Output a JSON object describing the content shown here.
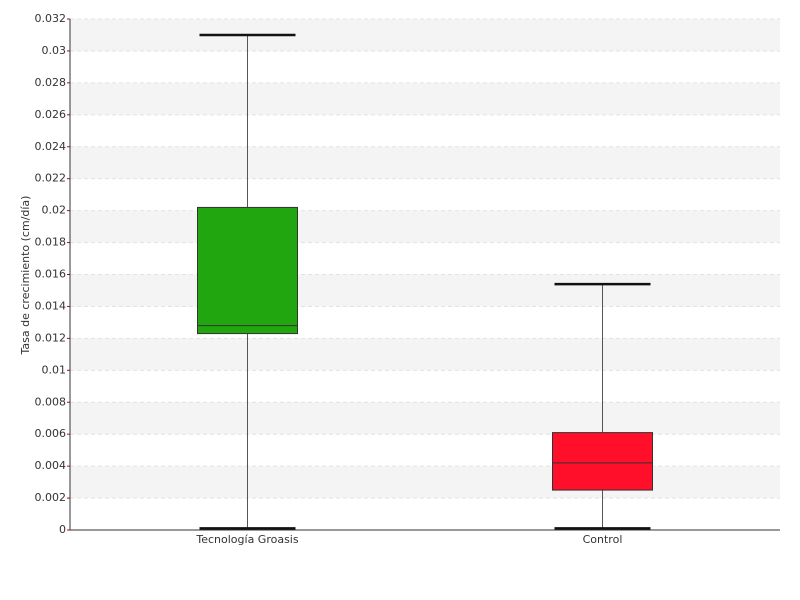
{
  "chart_data": {
    "type": "box",
    "y_label": "Tasa de crecimiento (cm/día)",
    "categories": [
      "Tecnología Groasis",
      "Control"
    ],
    "boxes": [
      {
        "min": 0.0001,
        "q1": 0.0123,
        "median": 0.0128,
        "q3": 0.0202,
        "max": 0.031,
        "color": "#22a60f"
      },
      {
        "min": 0.0001,
        "q1": 0.0025,
        "median": 0.0042,
        "q3": 0.0061,
        "max": 0.0154,
        "color": "#ff0f2a"
      }
    ],
    "ylim": [
      0,
      0.032
    ],
    "yticks": [
      0,
      0.002,
      0.004,
      0.006,
      0.008,
      0.01,
      0.012,
      0.014,
      0.016,
      0.018,
      0.02,
      0.022,
      0.024,
      0.026,
      0.028,
      0.03,
      0.032
    ],
    "grid": true
  }
}
